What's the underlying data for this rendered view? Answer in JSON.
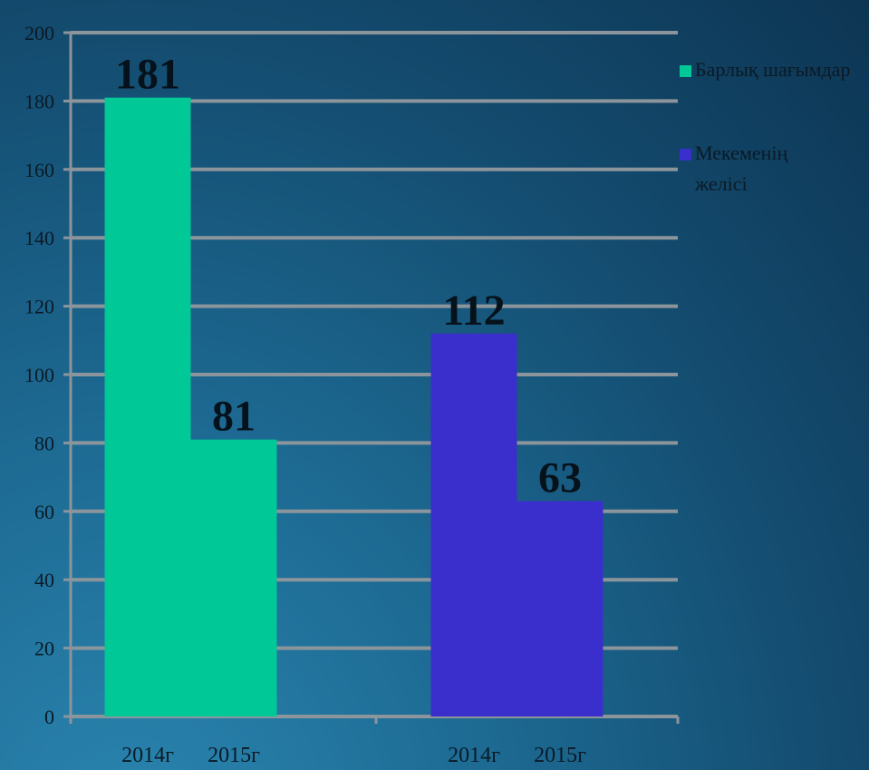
{
  "chart_data": {
    "type": "bar",
    "groups": [
      {
        "series": "Барлық шағымдар",
        "categories": [
          "2014г",
          "2015г"
        ],
        "values": [
          181,
          81
        ]
      },
      {
        "series": "Мекеменің желісі",
        "categories": [
          "2014г",
          "2015г"
        ],
        "values": [
          112,
          63
        ]
      }
    ],
    "series": [
      {
        "name": "Барлық шағымдар",
        "values": [
          181,
          81
        ],
        "color": "#00c896"
      },
      {
        "name": "Мекеменің желісі",
        "values": [
          112,
          63
        ],
        "color": "#3a2fcc"
      }
    ],
    "legend_lines": [
      [
        "Барлық шағымдар"
      ],
      [
        "Мекеменің",
        "желісі"
      ]
    ],
    "ylim": [
      0,
      200
    ],
    "y_ticks": [
      0,
      20,
      40,
      60,
      80,
      100,
      120,
      140,
      160,
      180,
      200
    ],
    "grid": true,
    "legend_position": "right",
    "data_labels": true
  }
}
